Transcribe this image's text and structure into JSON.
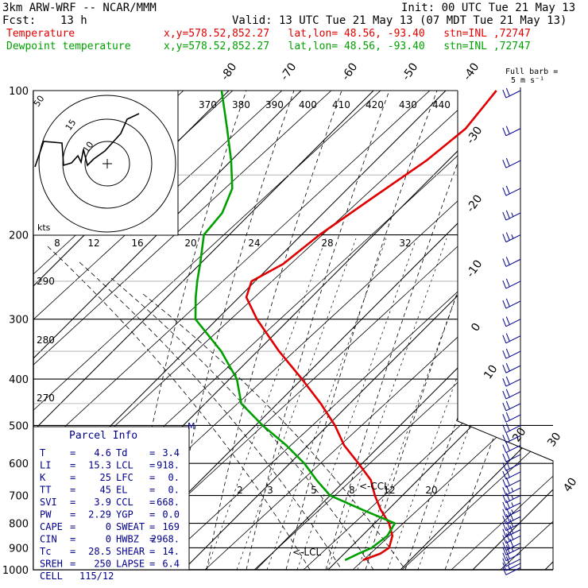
{
  "header": {
    "model": "3km ARW-WRF -- NCAR/MMM",
    "init": "Init: 00 UTC Tue 21 May 13",
    "fcst_label": "Fcst:",
    "fcst_value": "13 h",
    "valid": "Valid: 13 UTC Tue 21 May 13 (07 MDT Tue 21 May 13)",
    "temp_line": "Temperature",
    "dew_line": "Dewpoint temperature",
    "loc_text": "x,y=578.52,852.27   lat,lon= 48.56, -93.40   stn=INL ,72747"
  },
  "barbs": {
    "title1": "Full barb =",
    "title2": "5 m s⁻¹"
  },
  "hodograph": {
    "units": "kts",
    "rings": [
      "5",
      "10",
      "15"
    ]
  },
  "parcel": {
    "title": "Parcel Info",
    "rows": [
      [
        "T",
        "4.6",
        "Td",
        "3.4"
      ],
      [
        "LI",
        "15.3",
        "LCL",
        "918."
      ],
      [
        "K",
        "25",
        "LFC",
        "0."
      ],
      [
        "TT",
        "45",
        "EL",
        "0."
      ],
      [
        "SVI",
        "3.9",
        "CCL",
        "668."
      ],
      [
        "PW",
        "2.29",
        "YGP",
        "0.0"
      ],
      [
        "CAPE",
        "0",
        "SWEAT",
        "169"
      ],
      [
        "CIN",
        "0",
        "HWBZ",
        "2968."
      ],
      [
        "Tc",
        "28.5",
        "SHEAR",
        "14."
      ],
      [
        "SREH",
        "250",
        "LAPSE",
        "6.4"
      ],
      [
        "CELL",
        "115/12",
        "",
        ""
      ]
    ]
  },
  "chart_data": {
    "type": "line",
    "title": "",
    "pressure_levels": [
      100,
      200,
      300,
      400,
      500,
      600,
      700,
      800,
      900,
      1000
    ],
    "temp_ticks": [
      -40,
      -30,
      -20,
      -10,
      0,
      10,
      20,
      30,
      40
    ],
    "theta_labels": [
      "290",
      "280",
      "270"
    ],
    "thetae_labels": [
      "370",
      "380",
      "390",
      "400",
      "410",
      "420",
      "430",
      "440"
    ],
    "mixing_ratio_labels": [
      "8",
      "12",
      "16",
      "20",
      "24",
      "28",
      "32"
    ],
    "mixing_ratio_low_labels": [
      "2",
      "3",
      "5",
      "8",
      "12",
      "20"
    ],
    "annotations": [
      "<-CCL",
      "<-LCL",
      "M"
    ],
    "series": [
      {
        "name": "Temperature",
        "color": "#e00000",
        "pressure": [
          955,
          925,
          900,
          850,
          800,
          750,
          700,
          650,
          600,
          550,
          500,
          450,
          400,
          350,
          300,
          270,
          250,
          230,
          200,
          170,
          140,
          120,
          100
        ],
        "temperature": [
          3.5,
          5.0,
          5.4,
          4.2,
          2.0,
          -1.0,
          -3.8,
          -6.5,
          -10.5,
          -15.0,
          -19.0,
          -24.0,
          -30.0,
          -37.0,
          -44.5,
          -49.0,
          -50.5,
          -48.5,
          -47.5,
          -45.5,
          -43.0,
          -42.0,
          -43.0
        ]
      },
      {
        "name": "Dewpoint temperature",
        "color": "#00a000",
        "pressure": [
          955,
          925,
          900,
          850,
          800,
          750,
          700,
          650,
          600,
          550,
          500,
          450,
          400,
          350,
          300,
          270,
          250,
          230,
          200,
          180,
          160,
          140,
          120,
          100
        ],
        "temperature": [
          1.0,
          2.0,
          3.0,
          3.5,
          2.8,
          -3.5,
          -10.0,
          -14.0,
          -18.0,
          -23.0,
          -29.0,
          -35.0,
          -39.0,
          -45.0,
          -53.0,
          -56.0,
          -58.0,
          -60.0,
          -63.5,
          -64.0,
          -66.0,
          -70.0,
          -75.0,
          -81.0
        ]
      }
    ],
    "wind_pressure": [
      990,
      970,
      950,
      925,
      900,
      880,
      850,
      825,
      800,
      775,
      750,
      725,
      700,
      675,
      650,
      625,
      600,
      575,
      550,
      525,
      500,
      475,
      450,
      425,
      400,
      375,
      350,
      325,
      300,
      275,
      250,
      225,
      200,
      180,
      160,
      140,
      120,
      100
    ],
    "wind_speed_ms": [
      5,
      8,
      10,
      12,
      14,
      15,
      15,
      15,
      15,
      15,
      14,
      14,
      13,
      13,
      12,
      12,
      12,
      11,
      11,
      10,
      10,
      10,
      10,
      10,
      10,
      10,
      10,
      10,
      12,
      12,
      12,
      12,
      13,
      13,
      12,
      12,
      10,
      10
    ]
  }
}
